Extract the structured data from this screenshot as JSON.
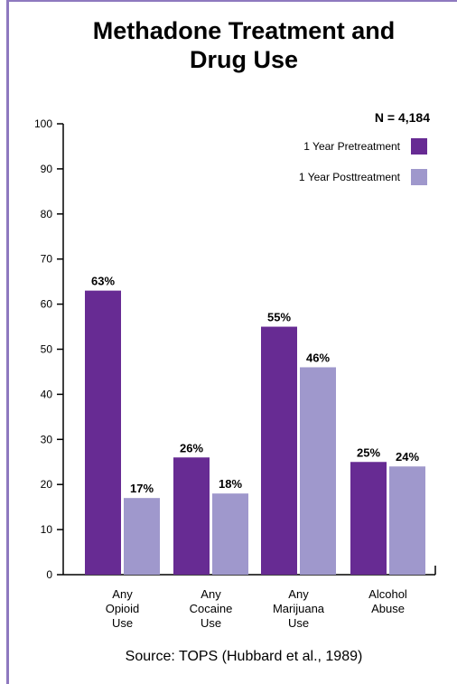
{
  "chart_data": {
    "type": "bar",
    "title": "Methadone Treatment and\nDrug Use",
    "annotation": "N = 4,184",
    "source": "Source:  TOPS (Hubbard et al., 1989)",
    "categories": [
      [
        "Any",
        "Opioid",
        "Use"
      ],
      [
        "Any",
        "Cocaine",
        "Use"
      ],
      [
        "Any",
        "Marijuana",
        "Use"
      ],
      [
        "Alcohol",
        "Abuse"
      ]
    ],
    "series": [
      {
        "name": "1 Year Pretreatment",
        "values": [
          63,
          26,
          55,
          25
        ],
        "labels": [
          "63%",
          "26%",
          "55%",
          "25%"
        ],
        "color": "#672b93"
      },
      {
        "name": "1 Year Posttreatment",
        "values": [
          17,
          18,
          46,
          24
        ],
        "labels": [
          "17%",
          "18%",
          "46%",
          "24%"
        ],
        "color": "#9f98cc"
      }
    ],
    "ylim": [
      0,
      100
    ],
    "yticks": [
      0,
      10,
      20,
      30,
      40,
      50,
      60,
      70,
      80,
      90,
      100
    ],
    "grid": false,
    "legend_position": "top-right"
  }
}
